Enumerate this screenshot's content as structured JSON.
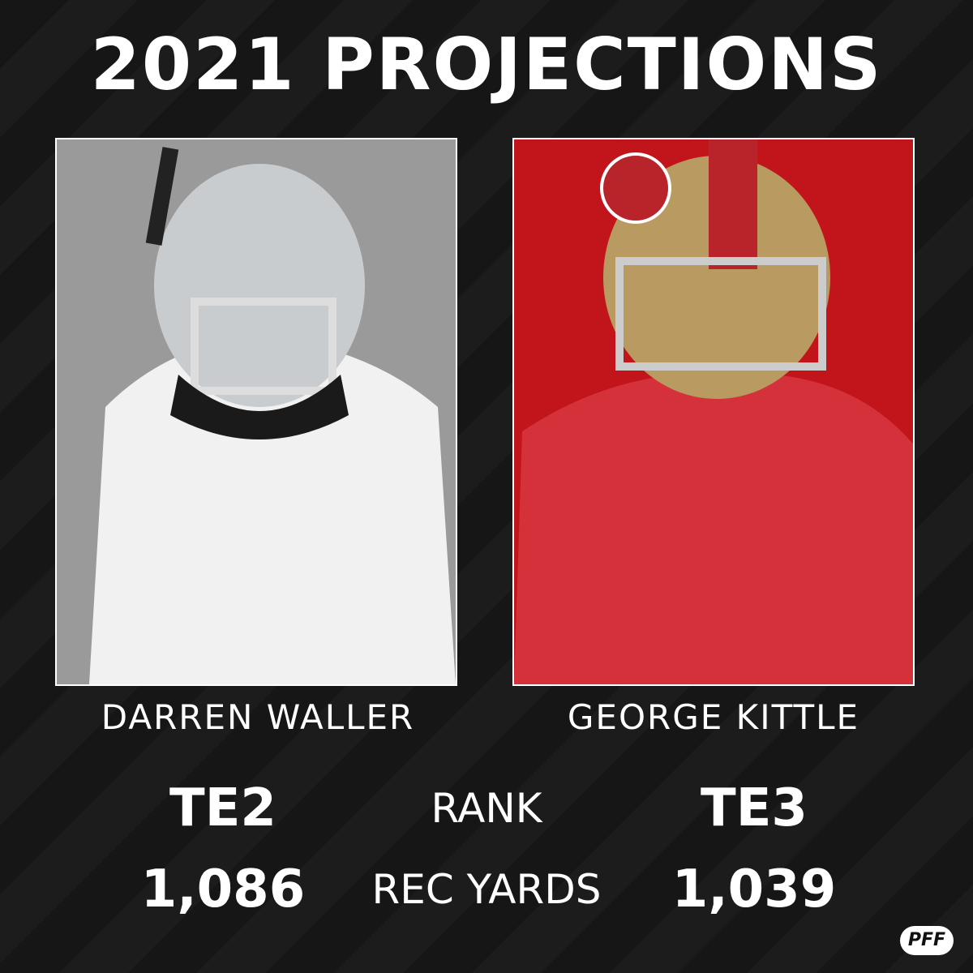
{
  "title": "2021 PROJECTIONS",
  "players": [
    {
      "name": "DARREN WALLER"
    },
    {
      "name": "GEORGE KITTLE"
    }
  ],
  "stats": [
    {
      "label": "RANK",
      "values": [
        "TE2",
        "TE3"
      ]
    },
    {
      "label": "REC YARDS",
      "values": [
        "1,086",
        "1,039"
      ]
    }
  ],
  "logo": "PFF"
}
